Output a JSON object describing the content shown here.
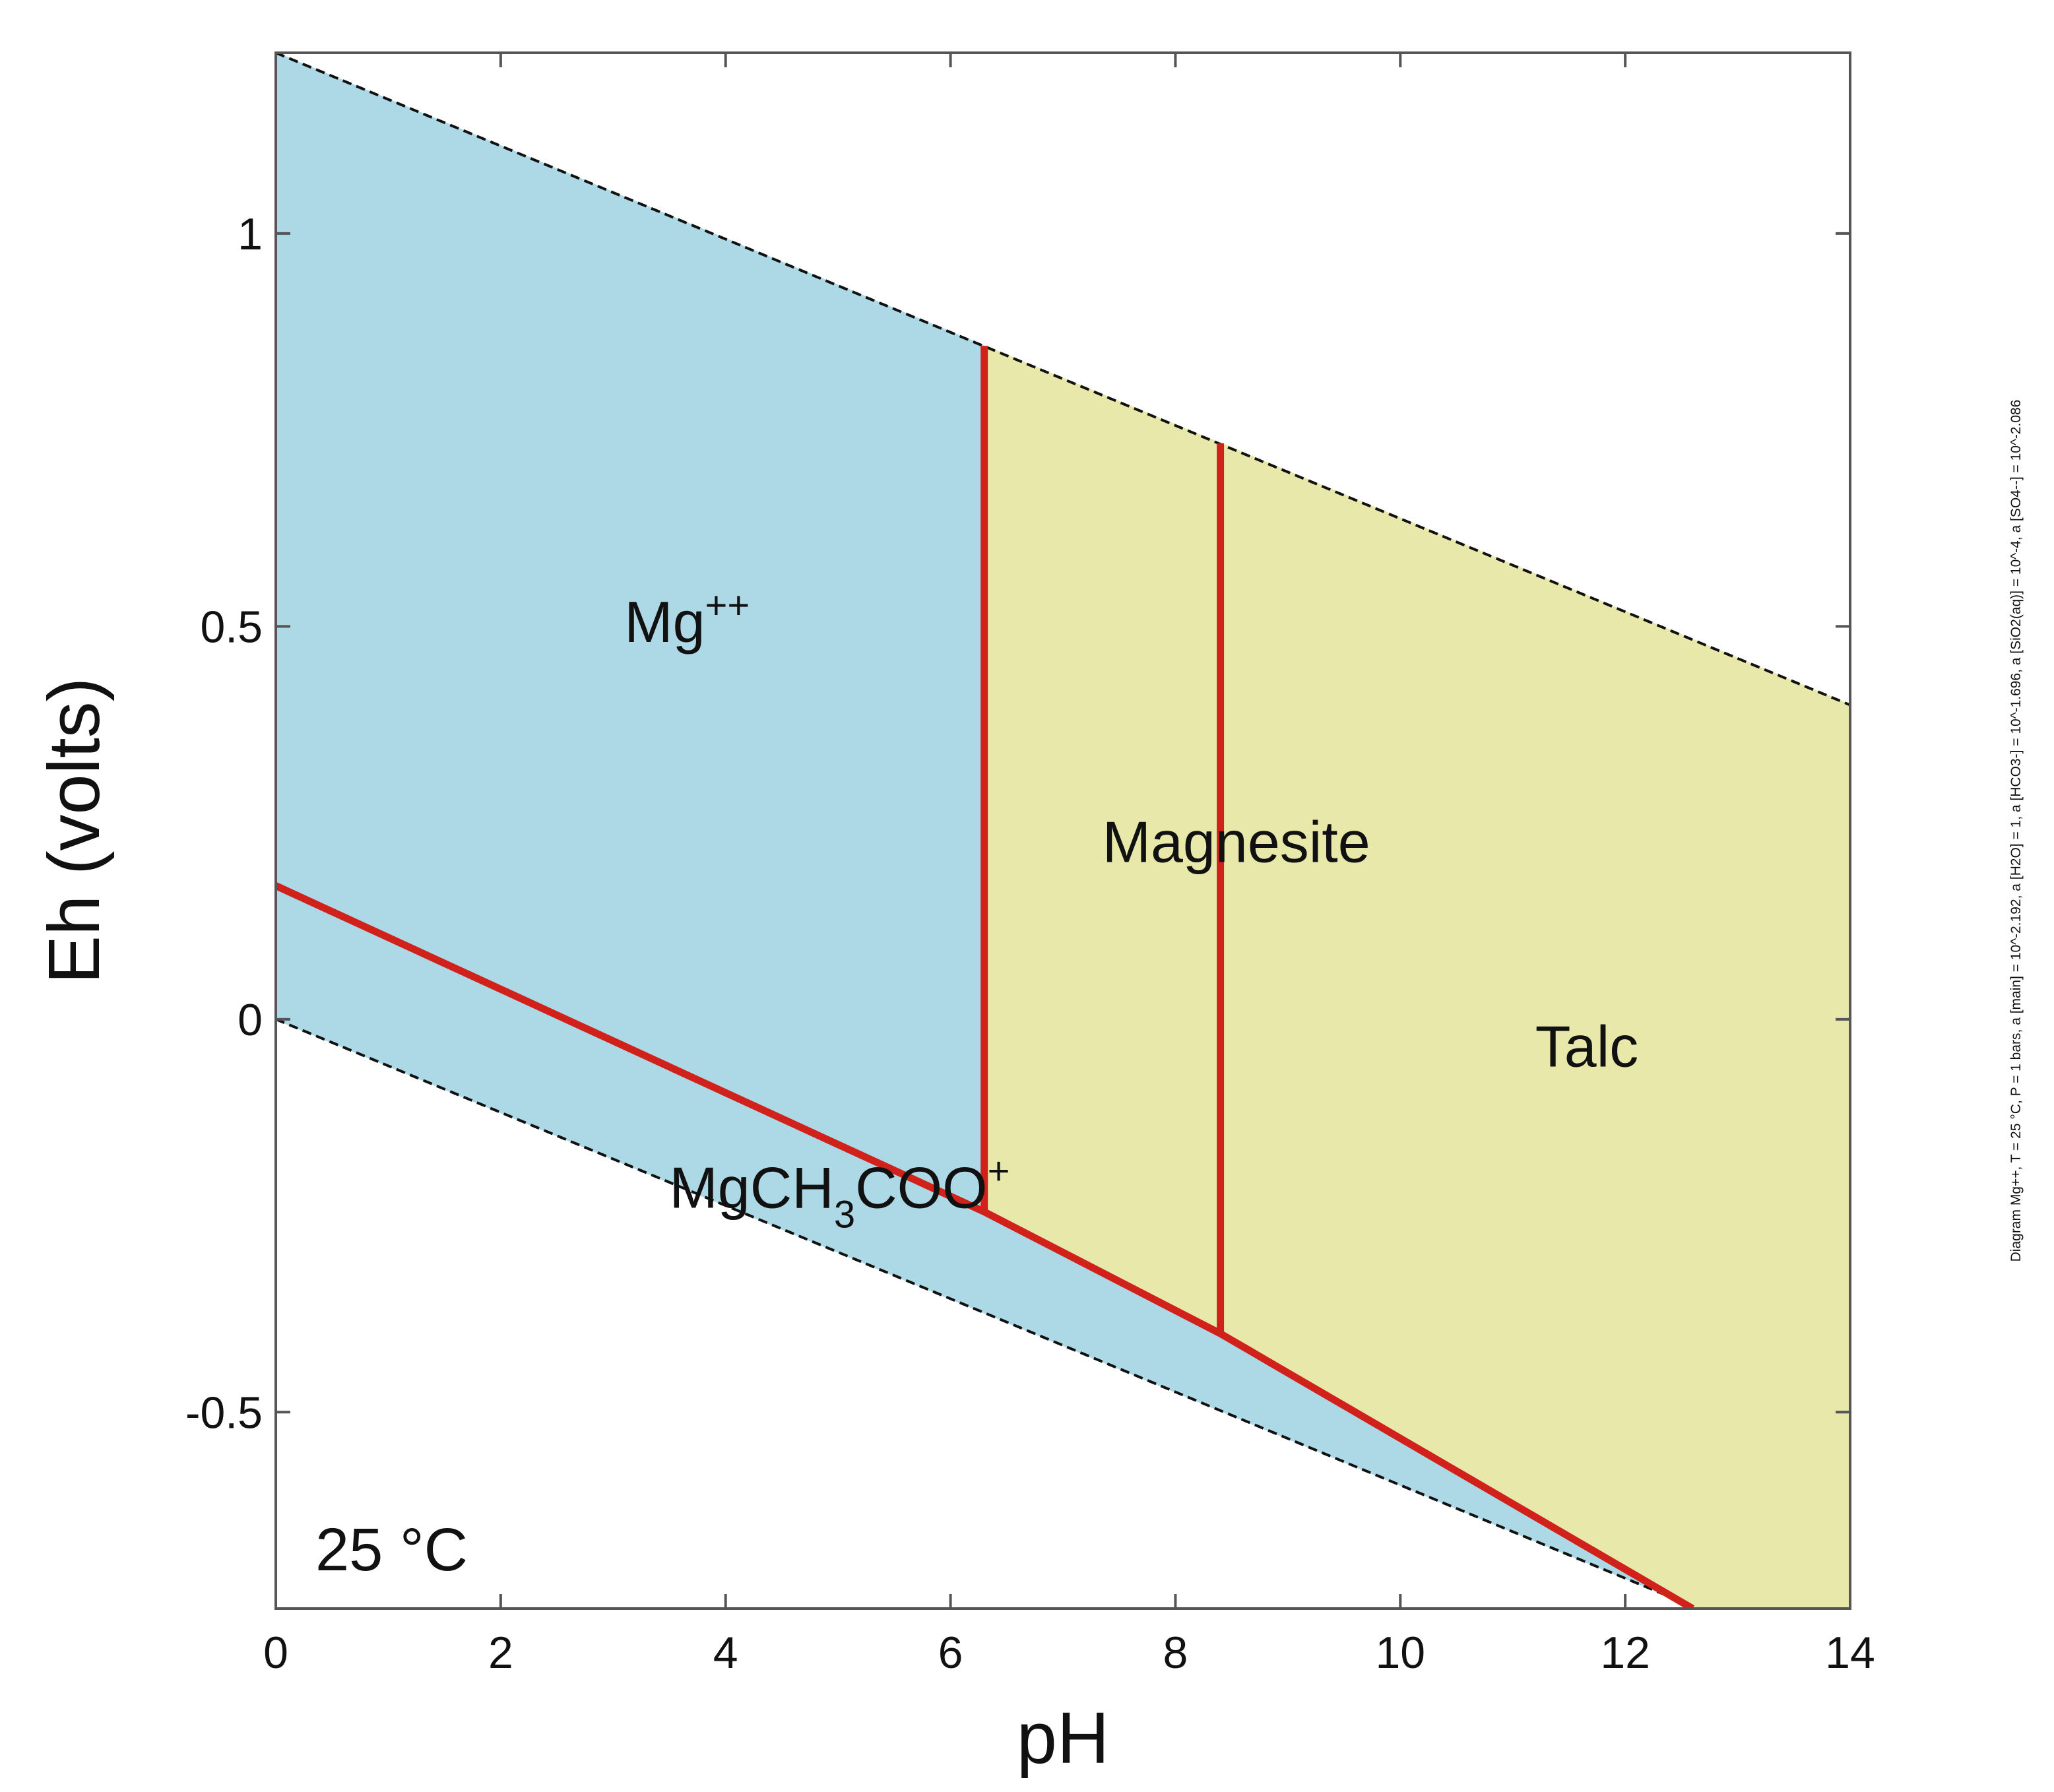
{
  "chart_data": {
    "type": "area",
    "xlabel": "pH",
    "ylabel": "Eh (volts)",
    "xlim": [
      0,
      14
    ],
    "ylim": [
      -0.75,
      1.23
    ],
    "xticks": [
      0,
      2,
      4,
      6,
      8,
      10,
      12,
      14
    ],
    "xtick_labels": [
      "0",
      "2",
      "4",
      "6",
      "8",
      "10",
      "12",
      "14"
    ],
    "yticks": [
      -0.5,
      0,
      0.5,
      1
    ],
    "ytick_labels": [
      "-0.5",
      "0",
      "0.5",
      "1"
    ],
    "temperature_label": "25 °C",
    "side_note": "Diagram Mg++, T = 25 °C, P = 1 bars, a [main] = 10^-2.192, a [H2O] = 1, a [HCO3-] = 10^-1.696, a [SiO2(aq)] = 10^-4, a [SO4--] = 10^-2.086",
    "grid": false,
    "colors": {
      "aqueous": "#add8e6",
      "mineral": "#e8e8aa",
      "boundary": "#d0211b",
      "water_limit": "#111111"
    },
    "water_limits": [
      {
        "name": "upper",
        "points": [
          [
            0,
            1.23
          ],
          [
            14,
            0.4
          ]
        ]
      },
      {
        "name": "lower",
        "points": [
          [
            0,
            0.0
          ],
          [
            14,
            -0.83
          ]
        ]
      }
    ],
    "regions": [
      {
        "label_main": "Mg",
        "label_sup": "++",
        "label_sub": "",
        "label_tail": "",
        "label_tail_sup": "",
        "kind": "aqueous",
        "label_at": [
          3.1,
          0.48
        ],
        "polygon": [
          [
            0,
            1.23
          ],
          [
            6.3,
            0.857
          ],
          [
            6.3,
            -0.245
          ],
          [
            0,
            0.17
          ]
        ]
      },
      {
        "label_main": "MgCH",
        "label_sup": "",
        "label_sub": "3",
        "label_tail": "COO",
        "label_tail_sup": "+",
        "kind": "aqueous",
        "label_at": [
          3.5,
          -0.24
        ],
        "polygon": [
          [
            0,
            0.17
          ],
          [
            6.3,
            -0.245
          ],
          [
            8.4,
            -0.4
          ],
          [
            12.6,
            -0.75
          ],
          [
            12.65,
            -0.75
          ],
          [
            0,
            0.0
          ]
        ]
      },
      {
        "label_main": "Magnesite",
        "label_sup": "",
        "label_sub": "",
        "label_tail": "",
        "label_tail_sup": "",
        "kind": "mineral",
        "label_at": [
          7.35,
          0.2
        ],
        "polygon": [
          [
            6.3,
            0.857
          ],
          [
            8.4,
            0.733
          ],
          [
            8.4,
            -0.4
          ],
          [
            6.3,
            -0.245
          ]
        ]
      },
      {
        "label_main": "Talc",
        "label_sup": "",
        "label_sub": "",
        "label_tail": "",
        "label_tail_sup": "",
        "kind": "mineral",
        "label_at": [
          11.2,
          -0.06
        ],
        "polygon": [
          [
            8.4,
            0.733
          ],
          [
            14,
            0.4
          ],
          [
            14,
            -0.75
          ],
          [
            12.6,
            -0.75
          ],
          [
            8.4,
            -0.4
          ]
        ]
      }
    ],
    "boundaries": [
      {
        "points": [
          [
            0,
            0.17
          ],
          [
            6.3,
            -0.245
          ],
          [
            8.4,
            -0.4
          ],
          [
            12.6,
            -0.75
          ]
        ]
      },
      {
        "points": [
          [
            6.3,
            0.857
          ],
          [
            6.3,
            -0.245
          ]
        ]
      },
      {
        "points": [
          [
            8.4,
            0.733
          ],
          [
            8.4,
            -0.4
          ]
        ]
      }
    ]
  }
}
